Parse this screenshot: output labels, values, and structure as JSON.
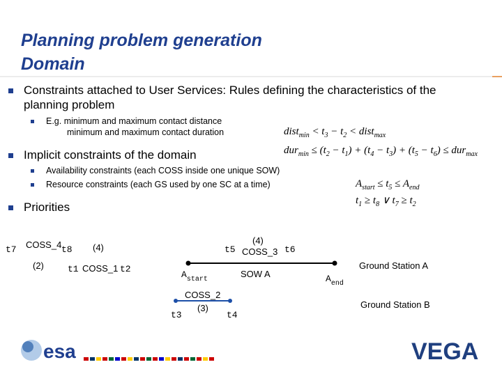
{
  "header": {
    "title_line1": "Planning problem generation",
    "title_line2": "Domain"
  },
  "bullets": [
    {
      "text_lines": [
        "Constraints attached to User Services: Rules defining the characteristics of the",
        "planning problem"
      ],
      "sub": [
        {
          "text_lines": [
            "E.g. minimum and maximum contact distance",
            "minimum and maximum contact duration"
          ]
        }
      ]
    },
    {
      "text_lines": [
        "Implicit constraints of the domain"
      ],
      "sub": [
        {
          "text_lines": [
            "Availability constraints (each COSS inside one unique SOW)"
          ]
        },
        {
          "text_lines": [
            "Resource constraints (each GS used by one SC at a time)"
          ]
        }
      ]
    },
    {
      "text_lines": [
        "Priorities"
      ],
      "sub": []
    }
  ],
  "formulas": [
    [
      {
        "t": "dist",
        "sub": false
      },
      {
        "t": "min",
        "sub": true
      },
      {
        "t": " < t",
        "sub": false
      },
      {
        "t": "3",
        "sub": true
      },
      {
        "t": " − t",
        "sub": false
      },
      {
        "t": "2",
        "sub": true
      },
      {
        "t": " < dist",
        "sub": false
      },
      {
        "t": "max",
        "sub": true
      }
    ],
    [
      {
        "t": "dur",
        "sub": false
      },
      {
        "t": "min",
        "sub": true
      },
      {
        "t": " ≤ (t",
        "sub": false
      },
      {
        "t": "2",
        "sub": true
      },
      {
        "t": " − t",
        "sub": false
      },
      {
        "t": "1",
        "sub": true
      },
      {
        "t": ") + (t",
        "sub": false
      },
      {
        "t": "4",
        "sub": true
      },
      {
        "t": " − t",
        "sub": false
      },
      {
        "t": "3",
        "sub": true
      },
      {
        "t": ") + (t",
        "sub": false
      },
      {
        "t": "5",
        "sub": true
      },
      {
        "t": " − t",
        "sub": false
      },
      {
        "t": "6",
        "sub": true
      },
      {
        "t": ") ≤ dur",
        "sub": false
      },
      {
        "t": "max",
        "sub": true
      }
    ],
    [
      {
        "t": "A",
        "sub": false
      },
      {
        "t": "start",
        "sub": true
      },
      {
        "t": " ≤ t",
        "sub": false
      },
      {
        "t": "5",
        "sub": true
      },
      {
        "t": " ≤ A",
        "sub": false
      },
      {
        "t": "end",
        "sub": true
      }
    ],
    [
      {
        "t": "t",
        "sub": false
      },
      {
        "t": "1",
        "sub": true
      },
      {
        "t": " ≥ t",
        "sub": false
      },
      {
        "t": "8",
        "sub": true
      },
      {
        "t": " ∨ t",
        "sub": false
      },
      {
        "t": "7",
        "sub": true
      },
      {
        "t": " ≥ t",
        "sub": false
      },
      {
        "t": "2",
        "sub": true
      }
    ]
  ],
  "diagram": {
    "labels": [
      {
        "text": "t7"
      },
      {
        "text": "COSS_4"
      },
      {
        "text": "t8"
      },
      {
        "text": "(4)"
      },
      {
        "text": "(2)"
      },
      {
        "text": "t1"
      },
      {
        "text": "COSS_1"
      },
      {
        "text": "t2"
      },
      {
        "text": "t5"
      },
      {
        "text": "(4)"
      },
      {
        "text": "COSS_3"
      },
      {
        "text": "t6"
      },
      {
        "text": "A",
        "sub": "start"
      },
      {
        "text": "SOW A"
      },
      {
        "text": "A",
        "sub": "end"
      },
      {
        "text": "Ground Station A"
      },
      {
        "text": "COSS_2"
      },
      {
        "text": "t3"
      },
      {
        "text": "(3)"
      },
      {
        "text": "t4"
      },
      {
        "text": "Ground Station B"
      }
    ]
  },
  "logos": {
    "left": "esa",
    "right": "VEGA"
  }
}
